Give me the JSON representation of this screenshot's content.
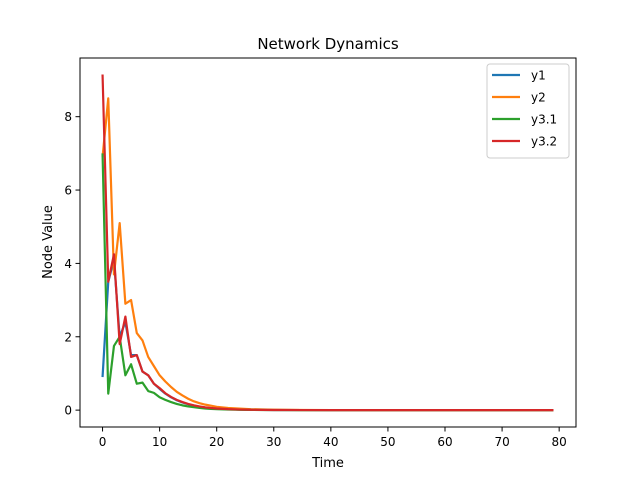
{
  "chart_data": {
    "type": "line",
    "title": "Network Dynamics",
    "xlabel": "Time",
    "ylabel": "Node Value",
    "xlim": [
      -3.95,
      82.95
    ],
    "ylim": [
      -0.46,
      9.6
    ],
    "xticks": [
      0,
      10,
      20,
      30,
      40,
      50,
      60,
      70,
      80
    ],
    "yticks": [
      0,
      2,
      4,
      6,
      8
    ],
    "grid": false,
    "legend_position": "top-right",
    "series": [
      {
        "name": "y1",
        "color": "#1f77b4",
        "x": [
          0,
          1,
          2,
          3,
          4,
          5,
          6,
          7,
          8,
          9,
          10,
          11,
          12,
          13,
          14,
          15,
          16,
          17,
          18,
          19,
          20,
          22,
          24,
          26,
          28,
          30,
          35,
          40,
          50,
          60,
          70,
          79
        ],
        "y": [
          0.9,
          3.5,
          4.1,
          2.0,
          2.4,
          1.5,
          1.5,
          1.05,
          0.95,
          0.72,
          0.58,
          0.45,
          0.35,
          0.27,
          0.21,
          0.16,
          0.12,
          0.09,
          0.07,
          0.05,
          0.04,
          0.025,
          0.015,
          0.01,
          0.006,
          0.004,
          0.002,
          0.001,
          0,
          0,
          0,
          0
        ]
      },
      {
        "name": "y2",
        "color": "#ff7f0e",
        "x": [
          0,
          1,
          2,
          3,
          4,
          5,
          6,
          7,
          8,
          9,
          10,
          11,
          12,
          13,
          14,
          15,
          16,
          17,
          18,
          19,
          20,
          22,
          24,
          26,
          28,
          30,
          35,
          40,
          50,
          60,
          70,
          79
        ],
        "y": [
          6.9,
          8.5,
          3.7,
          5.1,
          2.9,
          3.0,
          2.1,
          1.9,
          1.45,
          1.2,
          0.95,
          0.78,
          0.63,
          0.5,
          0.4,
          0.31,
          0.24,
          0.19,
          0.15,
          0.12,
          0.09,
          0.06,
          0.04,
          0.025,
          0.017,
          0.011,
          0.004,
          0.002,
          0,
          0,
          0,
          0
        ]
      },
      {
        "name": "y3.1",
        "color": "#2ca02c",
        "x": [
          0,
          1,
          2,
          3,
          4,
          5,
          6,
          7,
          8,
          9,
          10,
          11,
          12,
          13,
          14,
          15,
          16,
          17,
          18,
          19,
          20,
          22,
          24,
          26,
          28,
          30,
          35,
          40,
          50,
          60,
          70,
          79
        ],
        "y": [
          7.0,
          0.45,
          1.75,
          2.0,
          0.95,
          1.25,
          0.72,
          0.75,
          0.52,
          0.47,
          0.35,
          0.28,
          0.22,
          0.17,
          0.13,
          0.1,
          0.08,
          0.06,
          0.045,
          0.035,
          0.027,
          0.016,
          0.01,
          0.006,
          0.004,
          0.002,
          0.001,
          0,
          0,
          0,
          0,
          0
        ]
      },
      {
        "name": "y3.2",
        "color": "#d62728",
        "x": [
          0,
          1,
          2,
          3,
          4,
          5,
          6,
          7,
          8,
          9,
          10,
          11,
          12,
          13,
          14,
          15,
          16,
          17,
          18,
          19,
          20,
          22,
          24,
          26,
          28,
          30,
          35,
          40,
          50,
          60,
          70,
          79
        ],
        "y": [
          9.15,
          3.5,
          4.25,
          1.8,
          2.55,
          1.45,
          1.5,
          1.05,
          0.95,
          0.72,
          0.6,
          0.46,
          0.36,
          0.28,
          0.22,
          0.17,
          0.13,
          0.1,
          0.075,
          0.058,
          0.045,
          0.027,
          0.016,
          0.01,
          0.006,
          0.004,
          0.0015,
          0.0005,
          0,
          0,
          0,
          0
        ]
      }
    ]
  }
}
